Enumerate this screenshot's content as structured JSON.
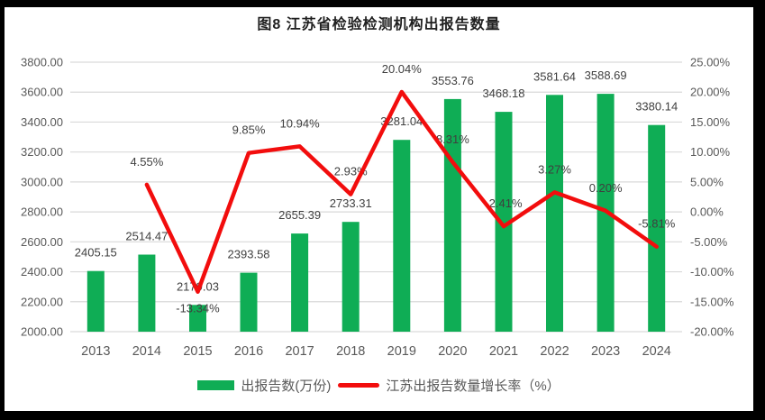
{
  "chart_data": {
    "type": "combo-bar-line",
    "title": "图8  江苏省检验检测机构出报告数量",
    "categories": [
      "2013",
      "2014",
      "2015",
      "2016",
      "2017",
      "2018",
      "2019",
      "2020",
      "2021",
      "2022",
      "2023",
      "2024"
    ],
    "series": [
      {
        "name": "出报告数(万份)",
        "type": "bar",
        "axis": "left",
        "color": "#0fad55",
        "values": [
          2405.15,
          2514.47,
          2179.03,
          2393.58,
          2655.39,
          2733.31,
          3281.04,
          3553.76,
          3468.18,
          3581.64,
          3588.69,
          3380.14
        ],
        "labels": [
          "2405.15",
          "2514.47",
          "2179.03",
          "2393.58",
          "2655.39",
          "2733.31",
          "3281.04",
          "3553.76",
          "3468.18",
          "3581.64",
          "3588.69",
          "3380.14"
        ]
      },
      {
        "name": "江苏出报告数量增长率（%）",
        "type": "line",
        "axis": "right",
        "color": "#f20d0d",
        "values": [
          null,
          4.55,
          -13.34,
          9.85,
          10.94,
          2.93,
          20.04,
          8.31,
          -2.41,
          3.27,
          0.2,
          -5.81
        ],
        "labels": [
          null,
          "4.55%",
          "-13.34%",
          "9.85%",
          "10.94%",
          "2.93%",
          "20.04%",
          "8.31%",
          "-2.41%",
          "3.27%",
          "0.20%",
          "-5.81%"
        ],
        "label_placement": [
          null,
          "above",
          "below",
          "above",
          "above",
          "above",
          "above",
          "above",
          "above",
          "above",
          "above",
          "above"
        ]
      }
    ],
    "left_axis": {
      "min": 2000,
      "max": 3800,
      "step": 200,
      "tick_labels": [
        "3800.00",
        "3600.00",
        "3400.00",
        "3200.00",
        "3000.00",
        "2800.00",
        "2600.00",
        "2400.00",
        "2200.00",
        "2000.00"
      ]
    },
    "right_axis": {
      "min": -20,
      "max": 25,
      "step": 5,
      "tick_labels": [
        "25.00%",
        "20.00%",
        "15.00%",
        "10.00%",
        "5.00%",
        "0.00%",
        "-5.00%",
        "-10.00%",
        "-15.00%",
        "-20.00%"
      ]
    },
    "xlabel": "",
    "ylabel": "",
    "grid": true,
    "legend_position": "bottom",
    "colors": {
      "grid": "#d9d9d9",
      "axis_text": "#595959",
      "data_label": "#3f3f3f",
      "frame_border": "#000000",
      "background": "#ffffff"
    }
  }
}
